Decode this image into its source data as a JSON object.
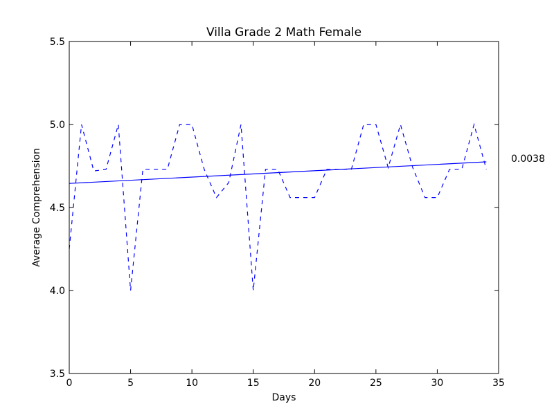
{
  "chart_data": {
    "type": "line",
    "title": "Villa Grade 2 Math Female",
    "xlabel": "Days",
    "ylabel": "Average Comprehension",
    "xlim": [
      0,
      35
    ],
    "ylim": [
      3.5,
      5.5
    ],
    "xticks": [
      "0",
      "5",
      "10",
      "15",
      "20",
      "25",
      "30",
      "35"
    ],
    "yticks": [
      "3.5",
      "4.0",
      "4.5",
      "5.0",
      "5.5"
    ],
    "grid": false,
    "series": [
      {
        "style": "dashed",
        "color": "#0000ff",
        "x": [
          0,
          1,
          2,
          3,
          4,
          5,
          6,
          7,
          8,
          9,
          10,
          11,
          12,
          13,
          14,
          15,
          16,
          17,
          18,
          19,
          20,
          21,
          22,
          23,
          24,
          25,
          26,
          27,
          28,
          29,
          30,
          31,
          32,
          33,
          34
        ],
        "y": [
          4.25,
          5.0,
          4.72,
          4.73,
          5.0,
          4.0,
          4.73,
          4.73,
          4.73,
          5.0,
          5.0,
          4.73,
          4.56,
          4.65,
          5.0,
          4.0,
          4.73,
          4.73,
          4.56,
          4.56,
          4.56,
          4.73,
          4.73,
          4.73,
          5.0,
          5.0,
          4.74,
          5.0,
          4.74,
          4.56,
          4.56,
          4.73,
          4.73,
          5.0,
          4.73
        ]
      },
      {
        "style": "solid",
        "color": "#0000ff",
        "x": [
          0,
          34
        ],
        "y": [
          4.645,
          4.775
        ]
      }
    ],
    "annotations": [
      {
        "text": "0.0038"
      }
    ]
  }
}
